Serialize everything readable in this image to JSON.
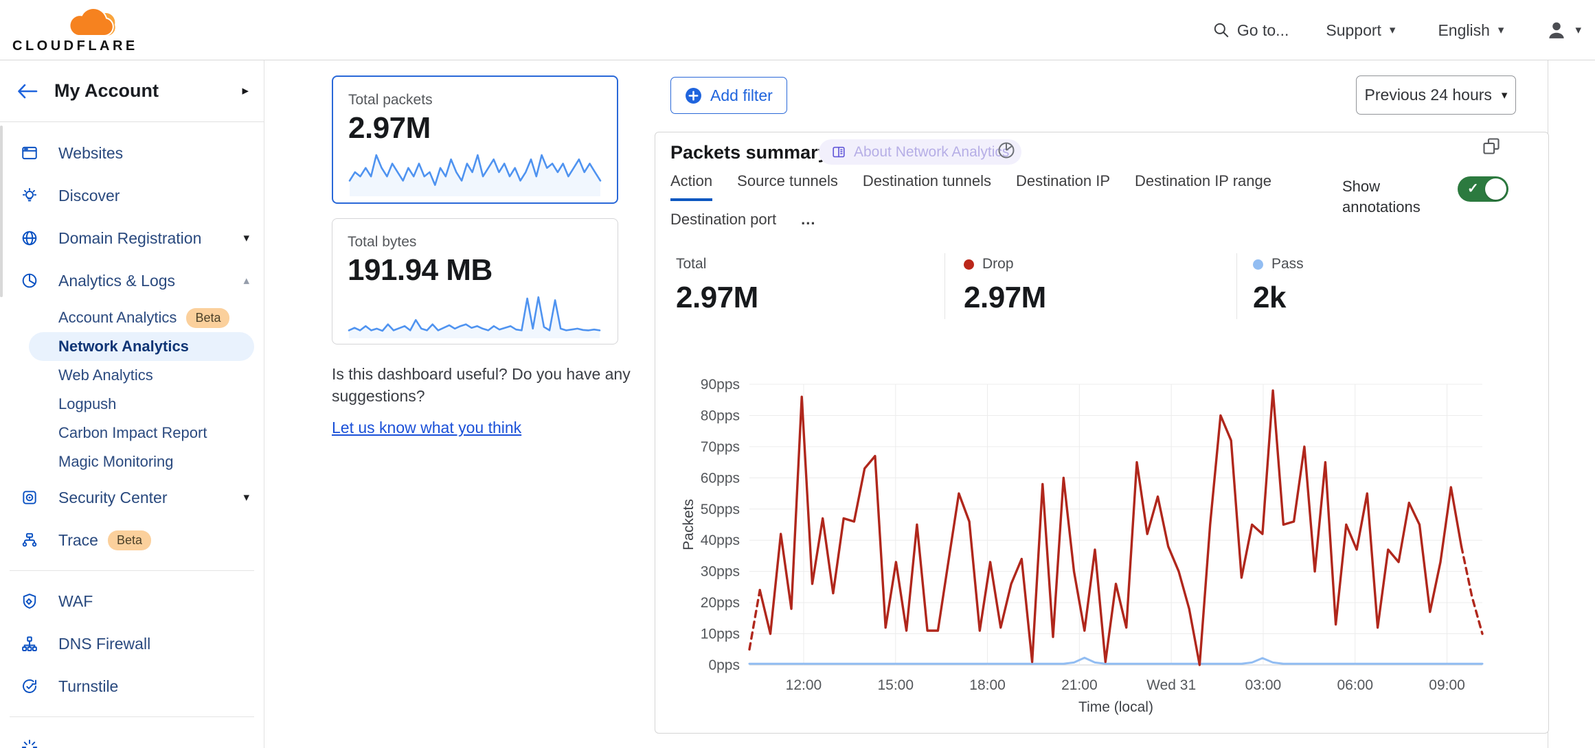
{
  "header": {
    "brand": "CLOUDFLARE",
    "goto_label": "Go to...",
    "support_label": "Support",
    "language_label": "English"
  },
  "sidebar": {
    "title": "My Account",
    "groups": [
      {
        "items": [
          {
            "label": "Websites",
            "icon": "browser-window-icon"
          },
          {
            "label": "Discover",
            "icon": "lightbulb-icon"
          },
          {
            "label": "Domain Registration",
            "icon": "globe-icon",
            "caret": "down"
          },
          {
            "label": "Analytics & Logs",
            "icon": "pie-chart-icon",
            "caret": "up",
            "children": [
              {
                "label": "Account Analytics",
                "badge": "Beta"
              },
              {
                "label": "Network Analytics",
                "selected": true
              },
              {
                "label": "Web Analytics"
              },
              {
                "label": "Logpush"
              },
              {
                "label": "Carbon Impact Report"
              },
              {
                "label": "Magic Monitoring"
              }
            ]
          },
          {
            "label": "Security Center",
            "icon": "security-center-icon",
            "caret": "down"
          },
          {
            "label": "Trace",
            "icon": "trace-icon",
            "badge": "Beta"
          }
        ]
      },
      {
        "items": [
          {
            "label": "WAF",
            "icon": "shield-icon"
          },
          {
            "label": "DNS Firewall",
            "icon": "dns-tree-icon"
          },
          {
            "label": "Turnstile",
            "icon": "turnstile-icon"
          }
        ]
      },
      {
        "items": [
          {
            "label": "",
            "icon": "spark-icon",
            "partial": true
          }
        ]
      }
    ]
  },
  "summary_cards": [
    {
      "label": "Total packets",
      "value": "2.97M",
      "selected": true,
      "chart": "total-packets-sparkline"
    },
    {
      "label": "Total bytes",
      "value": "191.94 MB",
      "selected": false,
      "chart": "total-bytes-sparkline"
    }
  ],
  "feedback": {
    "text": "Is this dashboard useful? Do you have any suggestions?",
    "link": "Let us know what you think"
  },
  "toolbar": {
    "add_filter_label": "Add filter",
    "time_range_label": "Previous 24 hours"
  },
  "panel": {
    "title": "Packets summary",
    "about_badge": "About Network Analytics",
    "tabs": [
      "Action",
      "Source tunnels",
      "Destination tunnels",
      "Destination IP",
      "Destination IP range",
      "Destination port"
    ],
    "active_tab": "Action",
    "more_tab_label": "...",
    "show_annotations_label": "Show annotations",
    "annotations_on": true,
    "stats": [
      {
        "label": "Total",
        "value": "2.97M"
      },
      {
        "label": "Drop",
        "value": "2.97M",
        "dot": "#bb271a"
      },
      {
        "label": "Pass",
        "value": "2k",
        "dot": "#92bdf2"
      }
    ]
  },
  "chart_data": [
    {
      "id": "packets-summary",
      "type": "line",
      "title": "Packets summary",
      "xlabel": "Time (local)",
      "ylabel": "Packets",
      "ylim": [
        0,
        90
      ],
      "yticks": [
        "0pps",
        "10pps",
        "20pps",
        "30pps",
        "40pps",
        "50pps",
        "60pps",
        "70pps",
        "80pps",
        "90pps"
      ],
      "xticks": [
        "12:00",
        "15:00",
        "18:00",
        "21:00",
        "Wed 31",
        "03:00",
        "06:00",
        "09:00"
      ],
      "grid": true,
      "legend_position": "none",
      "series": [
        {
          "name": "Drop",
          "color": "#b0271c",
          "dashed_start_segments": 1,
          "dashed_end_segments": 2,
          "values": [
            5,
            24,
            10,
            42,
            18,
            86,
            26,
            47,
            23,
            47,
            46,
            63,
            67,
            12,
            33,
            11,
            45,
            11,
            11,
            33,
            55,
            46,
            11,
            33,
            12,
            26,
            34,
            1,
            58,
            9,
            60,
            30,
            11,
            37,
            1,
            26,
            12,
            65,
            42,
            54,
            38,
            30,
            18,
            0,
            45,
            80,
            72,
            28,
            45,
            42,
            88,
            45,
            46,
            70,
            30,
            65,
            13,
            45,
            37,
            55,
            12,
            37,
            33,
            52,
            45,
            17,
            33,
            57,
            38,
            22,
            10
          ]
        },
        {
          "name": "Pass",
          "color": "#92bdf2",
          "values": [
            0.4,
            0.4,
            0.4,
            0.4,
            0.4,
            0.4,
            0.4,
            0.4,
            0.4,
            0.4,
            0.4,
            0.4,
            0.4,
            0.4,
            0.4,
            0.4,
            0.4,
            0.4,
            0.4,
            0.4,
            0.4,
            0.4,
            0.4,
            0.4,
            0.4,
            0.4,
            0.4,
            0.4,
            0.4,
            0.4,
            0.4,
            0.8,
            2.3,
            0.8,
            0.4,
            0.4,
            0.4,
            0.4,
            0.4,
            0.4,
            0.4,
            0.4,
            0.4,
            0.4,
            0.4,
            0.4,
            0.4,
            0.4,
            0.8,
            2.2,
            0.8,
            0.4,
            0.4,
            0.4,
            0.4,
            0.4,
            0.4,
            0.4,
            0.4,
            0.4,
            0.4,
            0.4,
            0.4,
            0.4,
            0.4,
            0.4,
            0.4,
            0.4,
            0.4,
            0.4,
            0.4
          ]
        }
      ]
    },
    {
      "id": "total-packets-sparkline",
      "type": "line",
      "title": "Total packets sparkline",
      "color": "#4f93f0",
      "values": [
        3,
        5,
        4,
        6,
        4,
        9,
        6,
        4,
        7,
        5,
        3,
        6,
        4,
        7,
        4,
        5,
        2,
        6,
        4,
        8,
        5,
        3,
        7,
        5,
        9,
        4,
        6,
        8,
        5,
        7,
        4,
        6,
        3,
        5,
        8,
        4,
        9,
        6,
        7,
        5,
        7,
        4,
        6,
        8,
        5,
        7,
        5,
        3
      ]
    },
    {
      "id": "total-bytes-sparkline",
      "type": "line",
      "title": "Total bytes sparkline",
      "color": "#4f93f0",
      "values": [
        1.2,
        1.8,
        1.2,
        2.2,
        1.2,
        1.6,
        1.1,
        2.6,
        1.2,
        1.7,
        2.2,
        1.2,
        3.6,
        1.6,
        1.2,
        2.6,
        1.2,
        1.8,
        2.4,
        1.6,
        2.2,
        2.6,
        1.8,
        2.2,
        1.6,
        1.2,
        2.2,
        1.4,
        1.8,
        2.2,
        1.4,
        1.2,
        8.6,
        1.6,
        8.9,
        2.0,
        1.2,
        8.2,
        1.6,
        1.2,
        1.4,
        1.6,
        1.3,
        1.2,
        1.4,
        1.2
      ]
    }
  ],
  "colors": {
    "accent": "#1f64dd",
    "drop": "#b0271c",
    "pass": "#92bdf2",
    "toggle_green": "#2c7a3f"
  }
}
